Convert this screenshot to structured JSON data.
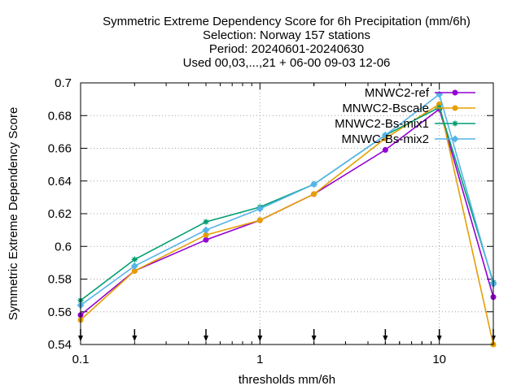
{
  "chart_data": {
    "type": "line",
    "title_lines": [
      "Symmetric Extreme Dependency Score  for 6h Precipitation (mm/6h)",
      "Selection: Norway    157 stations",
      "Period: 20240601-20240630",
      "Used 00,03,...,21 + 06-00 09-03 12-06"
    ],
    "xlabel": "thresholds mm/6h",
    "ylabel": "Symmetric Extreme Dependency Score",
    "x_scale": "log",
    "xlim": [
      0.1,
      20
    ],
    "ylim": [
      0.54,
      0.7
    ],
    "x_ticks": [
      {
        "value": 0.1,
        "label": "0.1"
      },
      {
        "value": 1,
        "label": "1"
      },
      {
        "value": 10,
        "label": "10"
      }
    ],
    "y_ticks": [
      {
        "value": 0.54,
        "label": "0.54"
      },
      {
        "value": 0.56,
        "label": "0.56"
      },
      {
        "value": 0.58,
        "label": "0.58"
      },
      {
        "value": 0.6,
        "label": "0.6"
      },
      {
        "value": 0.62,
        "label": "0.62"
      },
      {
        "value": 0.64,
        "label": "0.64"
      },
      {
        "value": 0.66,
        "label": "0.66"
      },
      {
        "value": 0.68,
        "label": "0.68"
      },
      {
        "value": 0.7,
        "label": "0.7"
      }
    ],
    "grid": true,
    "legend_position": "top-right",
    "threshold_markers": [
      0.1,
      0.2,
      0.5,
      1,
      2,
      5,
      10,
      20
    ],
    "x": [
      0.1,
      0.2,
      0.5,
      1,
      2,
      5,
      10,
      20
    ],
    "series": [
      {
        "name": "MNWC2-ref",
        "color": "#9400d3",
        "marker": "circle",
        "values": [
          0.558,
          0.585,
          0.604,
          0.616,
          0.632,
          0.659,
          0.684,
          0.569
        ]
      },
      {
        "name": "MNWC2-Bscale",
        "color": "#e69f00",
        "marker": "circle",
        "values": [
          0.555,
          0.585,
          0.607,
          0.616,
          0.632,
          0.666,
          0.687,
          0.54
        ]
      },
      {
        "name": "MNWC2-Bs-mix1",
        "color": "#009e73",
        "marker": "star",
        "values": [
          0.567,
          0.592,
          0.615,
          0.624,
          0.638,
          0.668,
          0.685,
          0.578
        ]
      },
      {
        "name": "MNWC-Bs-mix2",
        "color": "#56b4e9",
        "marker": "diamond",
        "values": [
          0.564,
          0.588,
          0.61,
          0.623,
          0.638,
          0.668,
          0.693,
          0.577
        ]
      }
    ]
  }
}
